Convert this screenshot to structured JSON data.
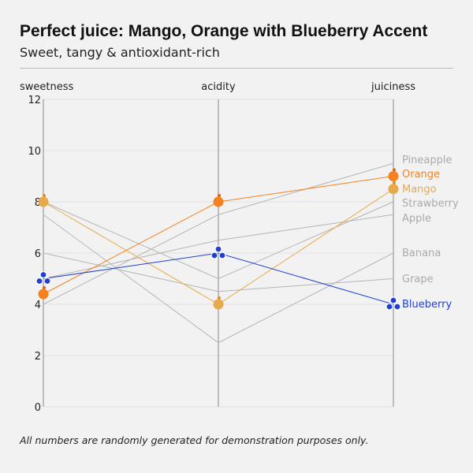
{
  "title": "Perfect juice: Mango, Orange with Blueberry Accent",
  "subtitle": "Sweet, tangy & antioxidant-rich",
  "note": "All numbers are randomly generated for demonstration purposes only.",
  "chart_data": {
    "type": "parallel-coordinates",
    "title": "Perfect juice: Mango, Orange with Blueberry Accent",
    "axes": [
      "sweetness",
      "acidity",
      "juiciness"
    ],
    "ylim": [
      0,
      12
    ],
    "yticks": [
      0,
      2,
      4,
      6,
      8,
      10,
      12
    ],
    "series": [
      {
        "name": "Pineapple",
        "values": [
          4,
          7.5,
          9.5
        ],
        "color": "#b5b5b5",
        "highlight": false
      },
      {
        "name": "Strawberry",
        "values": [
          8,
          5,
          8
        ],
        "color": "#b5b5b5",
        "highlight": false
      },
      {
        "name": "Apple",
        "values": [
          5,
          6.5,
          7.5
        ],
        "color": "#b5b5b5",
        "highlight": false
      },
      {
        "name": "Banana",
        "values": [
          7.5,
          2.5,
          6
        ],
        "color": "#b5b5b5",
        "highlight": false
      },
      {
        "name": "Grape",
        "values": [
          6,
          4.5,
          5
        ],
        "color": "#b5b5b5",
        "highlight": false
      },
      {
        "name": "Mango",
        "values": [
          8,
          4,
          8.5
        ],
        "color": "#e8a94a",
        "highlight": true
      },
      {
        "name": "Orange",
        "values": [
          4.4,
          8,
          9
        ],
        "color": "#f5821f",
        "highlight": true
      },
      {
        "name": "Blueberry",
        "values": [
          5,
          6,
          4
        ],
        "color": "#1f3fd1",
        "highlight": true
      }
    ]
  }
}
